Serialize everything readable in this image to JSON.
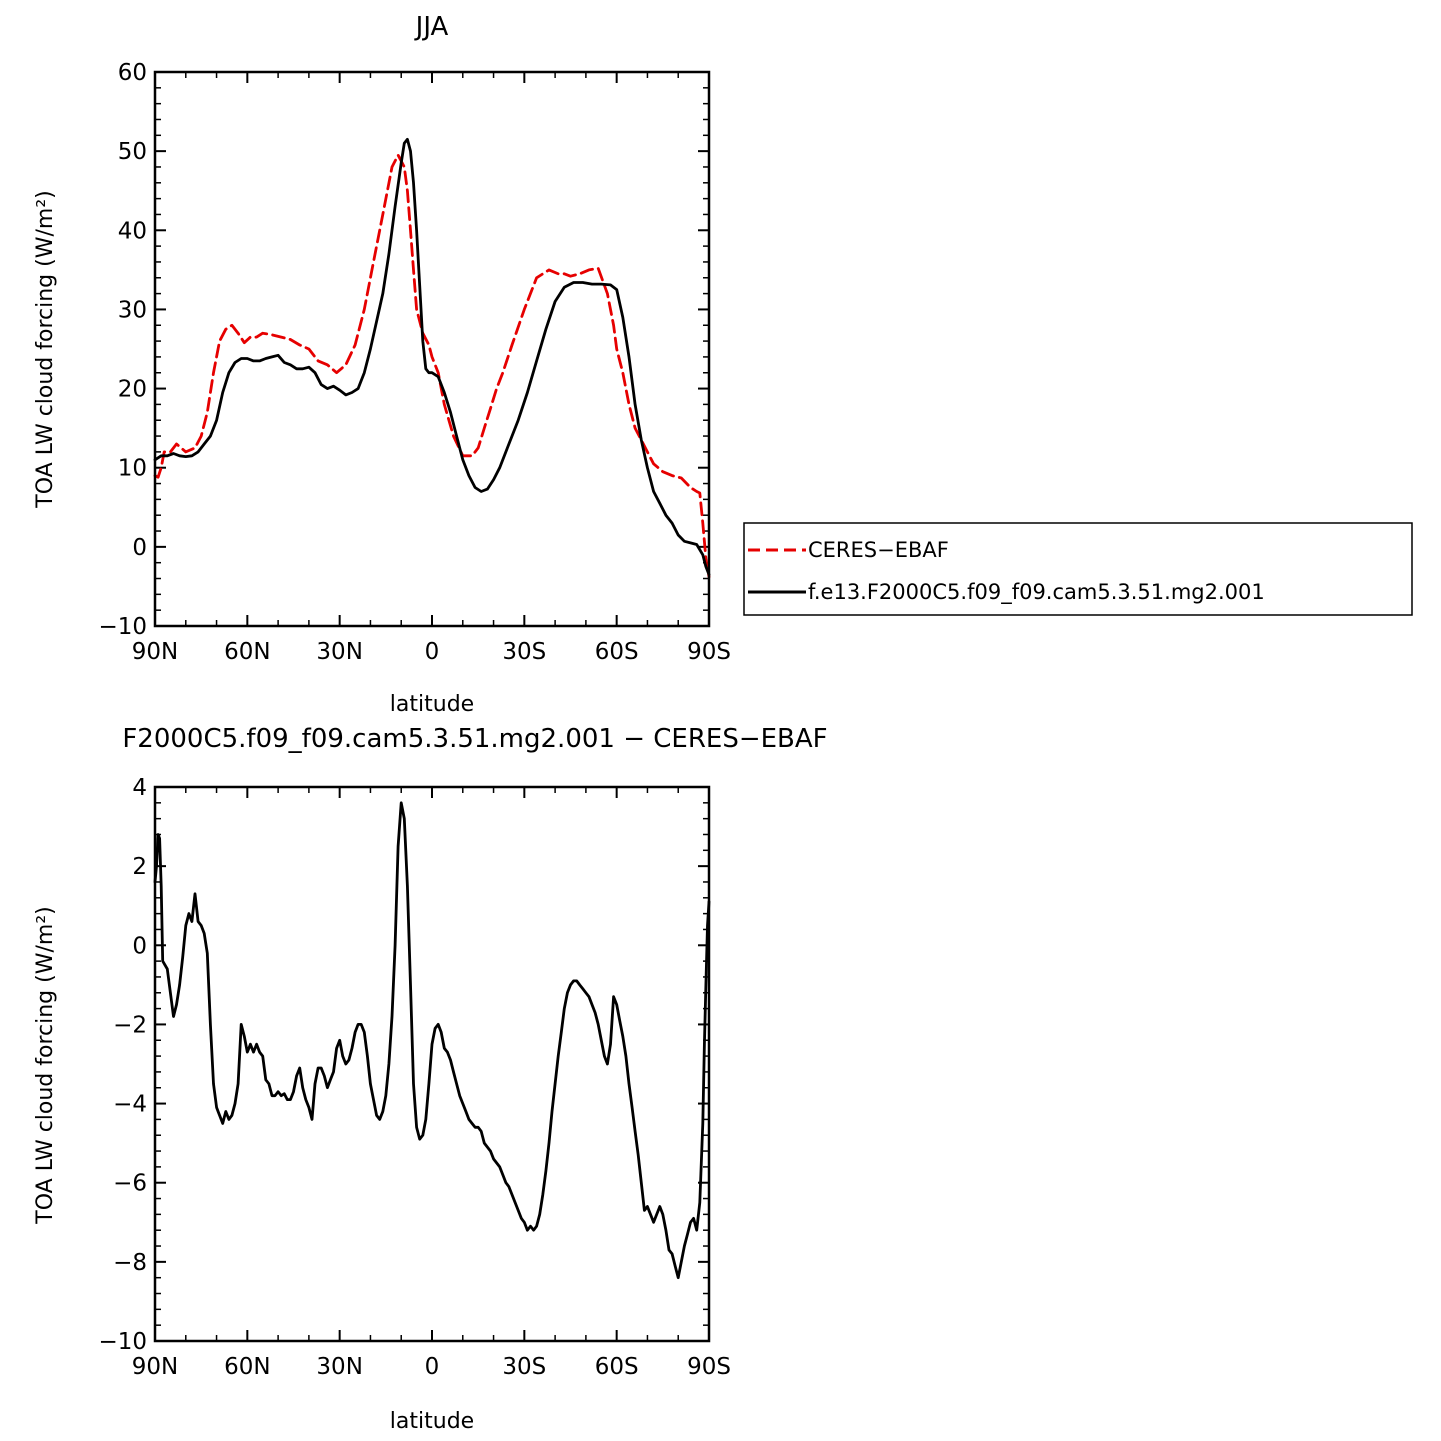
{
  "figure": {
    "title": "JJA",
    "diff_title": "F2000C5.f09_f09.cam5.3.51.mg2.001  −  CERES−EBAF"
  },
  "colors": {
    "obs_line": "#e60000",
    "model_line": "#000000",
    "diff_line": "#000000"
  },
  "chart_data": [
    {
      "type": "line",
      "title": "JJA",
      "xlabel": "latitude",
      "ylabel": "TOA LW cloud forcing (W/m²)",
      "x_ticks": [
        {
          "value": 90,
          "label": "90N"
        },
        {
          "value": 60,
          "label": "60N"
        },
        {
          "value": 30,
          "label": "30N"
        },
        {
          "value": 0,
          "label": "0"
        },
        {
          "value": -30,
          "label": "30S"
        },
        {
          "value": -60,
          "label": "60S"
        },
        {
          "value": -90,
          "label": "90S"
        }
      ],
      "xlim": [
        90,
        -90
      ],
      "ylim": [
        -10,
        60
      ],
      "y_ticks": [
        -10,
        0,
        10,
        20,
        30,
        40,
        50,
        60
      ],
      "legend": {
        "placement": "outside-right"
      },
      "series": [
        {
          "name": "CERES−EBAF",
          "style": "dashed",
          "x": [
            90,
            89,
            88,
            87,
            85,
            83,
            80,
            77,
            75,
            73,
            71,
            69,
            67,
            65,
            63,
            61,
            59,
            57,
            55,
            52,
            49,
            46,
            43,
            40,
            37,
            34,
            31,
            28,
            25,
            22,
            19,
            16,
            13,
            11,
            9,
            8,
            7,
            6,
            5,
            3,
            1,
            0,
            -2,
            -4,
            -7,
            -10,
            -13,
            -15,
            -17,
            -19,
            -21,
            -23,
            -26,
            -30,
            -34,
            -38,
            -41,
            -43,
            -45,
            -48,
            -51,
            -54,
            -57,
            -59,
            -60,
            -62,
            -64,
            -66,
            -68,
            -70,
            -72,
            -75,
            -78,
            -81,
            -84,
            -86,
            -87,
            -88,
            -89,
            -90
          ],
          "y": [
            9,
            8.8,
            10,
            12,
            12,
            13,
            12,
            12.5,
            14,
            17,
            22,
            26,
            27.5,
            28,
            27,
            25.8,
            26.5,
            26.5,
            27,
            26.8,
            26.5,
            26.2,
            25.5,
            25,
            23.5,
            23,
            22,
            23,
            25.5,
            30,
            36,
            42,
            48,
            49.5,
            48,
            45,
            40,
            35,
            30,
            27,
            25.5,
            24,
            22,
            18,
            14,
            11.5,
            11.5,
            12.5,
            15,
            17.5,
            20,
            22,
            25.5,
            30,
            34,
            35,
            34.5,
            34.5,
            34.2,
            34.5,
            35,
            35.2,
            32,
            28,
            25,
            22,
            18,
            15,
            13.5,
            12,
            10.5,
            9.5,
            9,
            8.7,
            7.5,
            7,
            6.8,
            3,
            -1.5,
            -3.8
          ]
        },
        {
          "name": "f.e13.F2000C5.f09_f09.cam5.3.51.mg2.001",
          "style": "solid",
          "x": [
            90,
            88,
            86,
            84,
            82,
            80,
            78,
            76,
            74,
            72,
            70,
            68,
            66,
            64,
            62,
            60,
            58,
            56,
            54,
            52,
            50,
            48,
            46,
            44,
            42,
            40,
            38,
            36,
            34,
            32,
            30,
            28,
            26,
            24,
            22,
            20,
            18,
            16,
            14,
            12,
            10,
            9,
            8,
            7,
            6,
            5,
            4,
            3,
            2,
            1,
            0,
            -2,
            -4,
            -6,
            -8,
            -10,
            -12,
            -14,
            -16,
            -18,
            -20,
            -22,
            -25,
            -28,
            -31,
            -34,
            -37,
            -40,
            -43,
            -46,
            -49,
            -52,
            -55,
            -58,
            -60,
            -62,
            -64,
            -66,
            -68,
            -70,
            -72,
            -74,
            -76,
            -78,
            -80,
            -82,
            -84,
            -86,
            -88,
            -89,
            -90
          ],
          "y": [
            11,
            11.5,
            11.5,
            11.8,
            11.5,
            11.4,
            11.5,
            12,
            13,
            14,
            16,
            19.5,
            22,
            23.3,
            23.8,
            23.8,
            23.5,
            23.5,
            23.8,
            24,
            24.2,
            23.3,
            23,
            22.5,
            22.5,
            22.7,
            22,
            20.5,
            20,
            20.3,
            19.8,
            19.2,
            19.5,
            20,
            22,
            25,
            28.5,
            32,
            37,
            43,
            48.5,
            51,
            51.5,
            50,
            46,
            40,
            33,
            26,
            22.5,
            22,
            22,
            21.5,
            19.5,
            17,
            14,
            11,
            9,
            7.5,
            7,
            7.3,
            8.5,
            10,
            13,
            16,
            19.5,
            23.5,
            27.5,
            31,
            32.8,
            33.4,
            33.4,
            33.2,
            33.2,
            33.1,
            32.5,
            29,
            24,
            18,
            13.5,
            10,
            7,
            5.5,
            4,
            3,
            1.5,
            0.7,
            0.5,
            0.3,
            -1,
            -2.5,
            -3.5
          ]
        }
      ]
    },
    {
      "type": "line",
      "title": "F2000C5.f09_f09.cam5.3.51.mg2.001  −  CERES−EBAF",
      "xlabel": "latitude",
      "ylabel": "TOA LW cloud forcing (W/m²)",
      "x_ticks": [
        {
          "value": 90,
          "label": "90N"
        },
        {
          "value": 60,
          "label": "60N"
        },
        {
          "value": 30,
          "label": "30N"
        },
        {
          "value": 0,
          "label": "0"
        },
        {
          "value": -30,
          "label": "30S"
        },
        {
          "value": -60,
          "label": "60S"
        },
        {
          "value": -90,
          "label": "90S"
        }
      ],
      "xlim": [
        90,
        -90
      ],
      "ylim": [
        -10,
        4
      ],
      "y_ticks": [
        -10,
        -8,
        -6,
        -4,
        -2,
        0,
        2,
        4
      ],
      "series": [
        {
          "style": "solid",
          "x": [
            90,
            89.5,
            89,
            88.5,
            88,
            87.5,
            86,
            85,
            84,
            83,
            82,
            81,
            80,
            79,
            78,
            77,
            76,
            75,
            74,
            73,
            72,
            71,
            70,
            69.5,
            69,
            68,
            67,
            66,
            65,
            64,
            63,
            62,
            61,
            60,
            59.5,
            59,
            58,
            57,
            56,
            55,
            54,
            53,
            52,
            51,
            50,
            49,
            48,
            47,
            46,
            45,
            44,
            43,
            42,
            41,
            40,
            39,
            38,
            37,
            36,
            35,
            34,
            33,
            32,
            31,
            30,
            29,
            28,
            27,
            26,
            25,
            24,
            23,
            22,
            21,
            20,
            19,
            18,
            17,
            16,
            15,
            14,
            13,
            12,
            11,
            10,
            9,
            8,
            7,
            6,
            5,
            4,
            3,
            2,
            1,
            0,
            -1,
            -2,
            -3,
            -4,
            -5,
            -6,
            -7,
            -8,
            -9,
            -10,
            -11,
            -12,
            -13,
            -14,
            -15,
            -16,
            -17,
            -18,
            -19,
            -20,
            -21,
            -22,
            -23,
            -24,
            -25,
            -26,
            -27,
            -28,
            -29,
            -30,
            -31,
            -32,
            -33,
            -34,
            -35,
            -36,
            -37,
            -38,
            -39,
            -40,
            -41,
            -42,
            -43,
            -44,
            -45,
            -46,
            -47,
            -48,
            -49,
            -50,
            -51,
            -52,
            -53,
            -54,
            -55,
            -56,
            -57,
            -58,
            -59,
            -60,
            -61,
            -62,
            -63,
            -64,
            -65,
            -66,
            -67,
            -68,
            -69,
            -70,
            -71,
            -72,
            -73,
            -74,
            -75,
            -76,
            -77,
            -78,
            -79,
            -80,
            -81,
            -82,
            -83,
            -84,
            -85,
            -86,
            -87,
            -88,
            -88.5,
            -89,
            -89.5,
            -90
          ],
          "y": [
            1.6,
            2,
            2.8,
            2.7,
            1.5,
            -0.4,
            -0.6,
            -1.2,
            -1.8,
            -1.5,
            -1,
            -0.3,
            0.5,
            0.8,
            0.6,
            1.3,
            0.6,
            0.5,
            0.3,
            -0.2,
            -2,
            -3.5,
            -4.1,
            -4.2,
            -4.3,
            -4.5,
            -4.2,
            -4.4,
            -4.3,
            -4,
            -3.5,
            -2,
            -2.3,
            -2.7,
            -2.6,
            -2.5,
            -2.7,
            -2.5,
            -2.7,
            -2.8,
            -3.4,
            -3.5,
            -3.8,
            -3.8,
            -3.7,
            -3.8,
            -3.75,
            -3.9,
            -3.9,
            -3.7,
            -3.3,
            -3.1,
            -3.6,
            -3.9,
            -4.1,
            -4.4,
            -3.5,
            -3.1,
            -3.1,
            -3.3,
            -3.6,
            -3.4,
            -3.2,
            -2.6,
            -2.4,
            -2.8,
            -3.0,
            -2.9,
            -2.6,
            -2.2,
            -2.0,
            -2.0,
            -2.2,
            -2.8,
            -3.5,
            -3.9,
            -4.3,
            -4.4,
            -4.2,
            -3.8,
            -3.0,
            -1.8,
            0,
            2.5,
            3.6,
            3.2,
            1.5,
            -1,
            -3.5,
            -4.6,
            -4.9,
            -4.8,
            -4.4,
            -3.5,
            -2.5,
            -2.1,
            -2.0,
            -2.2,
            -2.6,
            -2.7,
            -2.9,
            -3.2,
            -3.5,
            -3.8,
            -4.0,
            -4.2,
            -4.4,
            -4.5,
            -4.6,
            -4.6,
            -4.7,
            -5.0,
            -5.1,
            -5.2,
            -5.4,
            -5.5,
            -5.6,
            -5.8,
            -6.0,
            -6.1,
            -6.3,
            -6.5,
            -6.7,
            -6.9,
            -7.0,
            -7.2,
            -7.1,
            -7.2,
            -7.1,
            -6.8,
            -6.3,
            -5.7,
            -5.0,
            -4.2,
            -3.5,
            -2.8,
            -2.2,
            -1.6,
            -1.2,
            -1.0,
            -0.9,
            -0.9,
            -1.0,
            -1.1,
            -1.2,
            -1.3,
            -1.5,
            -1.7,
            -2.0,
            -2.4,
            -2.8,
            -3.0,
            -2.5,
            -1.3,
            -1.5,
            -1.9,
            -2.3,
            -2.8,
            -3.5,
            -4.1,
            -4.7,
            -5.3,
            -6.0,
            -6.7,
            -6.6,
            -6.8,
            -7.0,
            -6.8,
            -6.6,
            -6.8,
            -7.2,
            -7.7,
            -7.8,
            -8.1,
            -8.4,
            -8.0,
            -7.6,
            -7.3,
            -7.0,
            -6.9,
            -7.2,
            -6.5,
            -4.5,
            -2.5,
            -1,
            0.5,
            1.1
          ]
        }
      ]
    }
  ]
}
